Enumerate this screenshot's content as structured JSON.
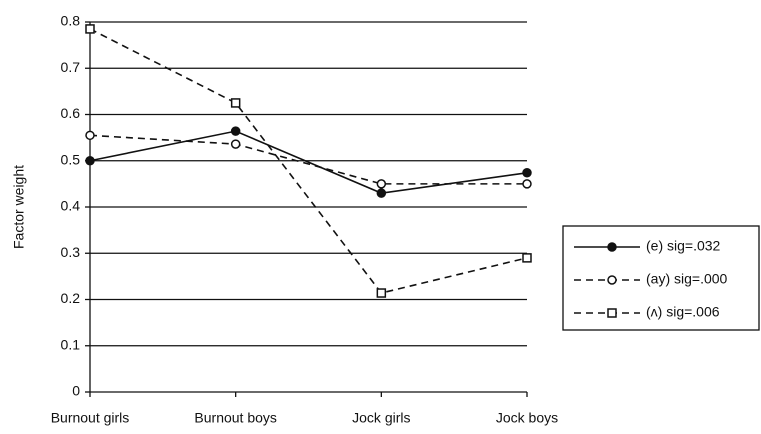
{
  "chart_data": {
    "type": "line",
    "y_label": "Factor weight",
    "categories": [
      "Burnout girls",
      "Burnout boys",
      "Jock girls",
      "Jock boys"
    ],
    "series": [
      {
        "name": "(e) sig=.032",
        "color": "#111111",
        "marker": "filled-circle",
        "dash": "solid",
        "values": [
          0.5,
          0.564,
          0.43,
          0.474
        ]
      },
      {
        "name": "(ay) sig=.000",
        "color": "#111111",
        "marker": "open-circle",
        "dash": "dashed",
        "values": [
          0.555,
          0.536,
          0.45,
          0.45
        ]
      },
      {
        "name": "(ʌ) sig=.006",
        "color": "#111111",
        "marker": "open-square",
        "dash": "dashed",
        "values": [
          0.785,
          0.625,
          0.214,
          0.29
        ]
      }
    ],
    "ylim": [
      0,
      0.8
    ],
    "yticks": [
      0,
      0.1,
      0.2,
      0.3,
      0.4,
      0.5,
      0.6,
      0.7,
      0.8
    ],
    "grid": true,
    "legend": "right"
  }
}
